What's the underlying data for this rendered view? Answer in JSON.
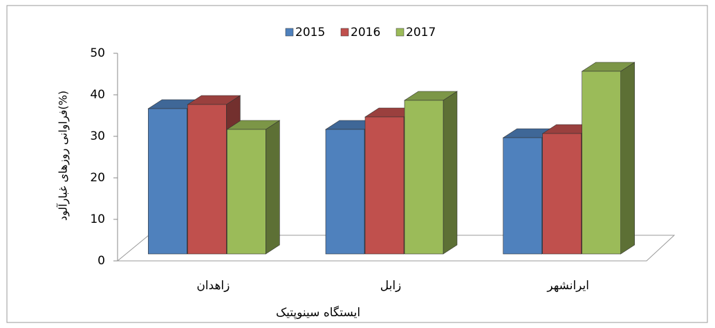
{
  "chart_data": {
    "type": "bar3d",
    "y_label": "فراوانی روزهای غبارآلود(%)",
    "x_label": "ایستگاه سینوپتیک",
    "categories": [
      "زاهدان",
      "زابل",
      "ایرانشهر"
    ],
    "series": [
      {
        "name": "2015",
        "color": "#4f81bd",
        "values": [
          35,
          30,
          28
        ]
      },
      {
        "name": "2016",
        "color": "#c0504d",
        "values": [
          36,
          33,
          29
        ]
      },
      {
        "name": "2017",
        "color": "#9bbb59",
        "values": [
          30,
          37,
          44
        ]
      }
    ],
    "ylim": [
      0,
      50
    ],
    "yticks": [
      0,
      10,
      20,
      30,
      40,
      50
    ],
    "grid": false,
    "legend": "top"
  }
}
